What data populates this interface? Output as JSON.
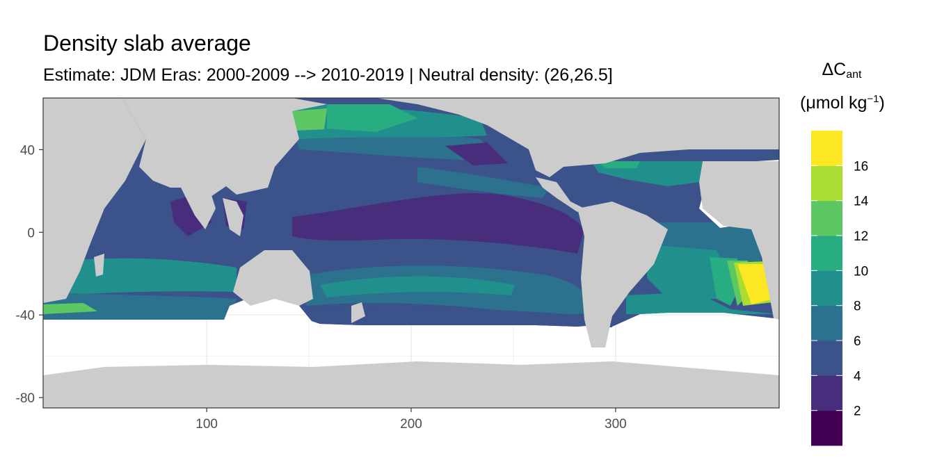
{
  "chart_data": {
    "type": "heatmap",
    "title": "Density slab average",
    "subtitle": "Estimate: JDM Eras: 2000-2009 --> 2010-2019 | Neutral density: (26,26.5]",
    "legend_title_symbol": "ΔC",
    "legend_title_subscript": "ant",
    "legend_units_base": "(μmol kg",
    "legend_units_exp": "−1",
    "legend_units_close": ")",
    "xlim": [
      20,
      380
    ],
    "ylim": [
      -85,
      65
    ],
    "x_ticks": [
      100,
      200,
      300
    ],
    "y_ticks": [
      40,
      0,
      -40,
      -80
    ],
    "x_tick_labels": [
      "100",
      "200",
      "300"
    ],
    "y_tick_labels": [
      "40",
      "0",
      "-40",
      "-80"
    ],
    "legend_breaks": [
      0,
      2,
      4,
      6,
      8,
      10,
      12,
      14,
      16,
      18
    ],
    "legend_labels": [
      "2",
      "4",
      "6",
      "8",
      "10",
      "12",
      "14",
      "16"
    ],
    "legend_label_values": [
      2,
      4,
      6,
      8,
      10,
      12,
      14,
      16
    ],
    "legend_colors": [
      "#440154",
      "#472D7B",
      "#3B528B",
      "#2C728E",
      "#21908C",
      "#27AD81",
      "#5DC863",
      "#AADC32",
      "#FDE725"
    ],
    "colors": {
      "land": "#cccccc",
      "no_data": "#ffffff",
      "grid": "#ebebeb",
      "panel_border": "#333333"
    }
  }
}
